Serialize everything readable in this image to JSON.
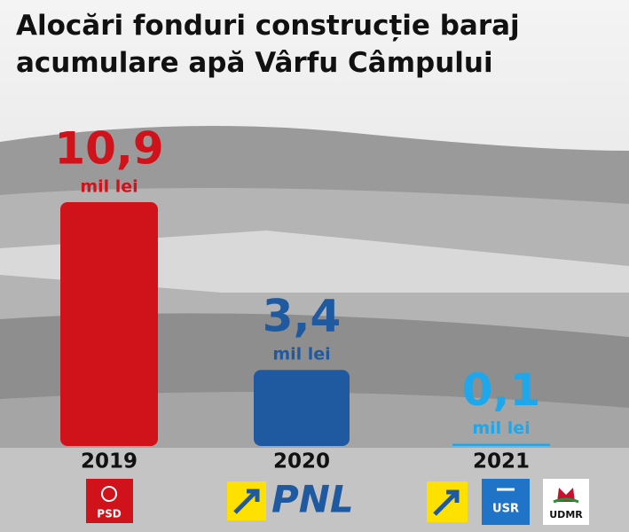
{
  "chart_data": {
    "type": "bar",
    "title": "Alocări fonduri construcție baraj acumulare apă Vârfu Câmpului",
    "categories": [
      "2019",
      "2020",
      "2021"
    ],
    "values": [
      10.9,
      3.4,
      0.1
    ],
    "value_labels": [
      "10,9",
      "3,4",
      "0,1"
    ],
    "value_unit": "mil lei",
    "colors": [
      "#d0121b",
      "#1f5aa0",
      "#1ea7ea"
    ],
    "logos": [
      [
        "PSD"
      ],
      [
        "PNL"
      ],
      [
        "USR",
        "UDMR"
      ]
    ]
  }
}
